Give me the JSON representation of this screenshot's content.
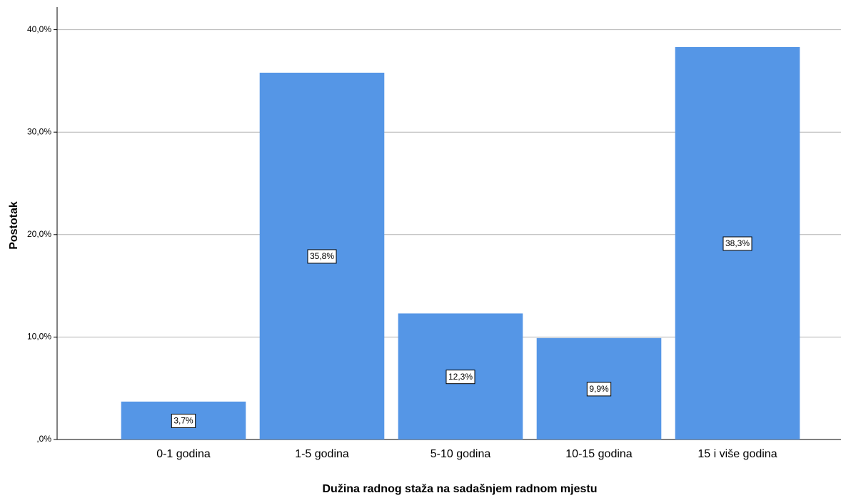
{
  "chart_data": {
    "type": "bar",
    "x_label": "Dužina radnog staža na sadašnjem radnom mjestu",
    "y_label": "Postotak",
    "categories": [
      "0-1 godina",
      "1-5 godina",
      "5-10 godina",
      "10-15 godina",
      "15 i više godina"
    ],
    "values": [
      3.7,
      35.8,
      12.3,
      9.9,
      38.3
    ],
    "value_labels": [
      "3,7%",
      "35,8%",
      "12,3%",
      "9,9%",
      "38,3%"
    ],
    "color": "#5596e6",
    "ylim": [
      0,
      42.2
    ],
    "yticks": [
      {
        "value": 0,
        "label": ",0%"
      },
      {
        "value": 10,
        "label": "10,0%"
      },
      {
        "value": 20,
        "label": "20,0%"
      },
      {
        "value": 30,
        "label": "30,0%"
      },
      {
        "value": 40,
        "label": "40,0%"
      }
    ],
    "grid": true
  }
}
